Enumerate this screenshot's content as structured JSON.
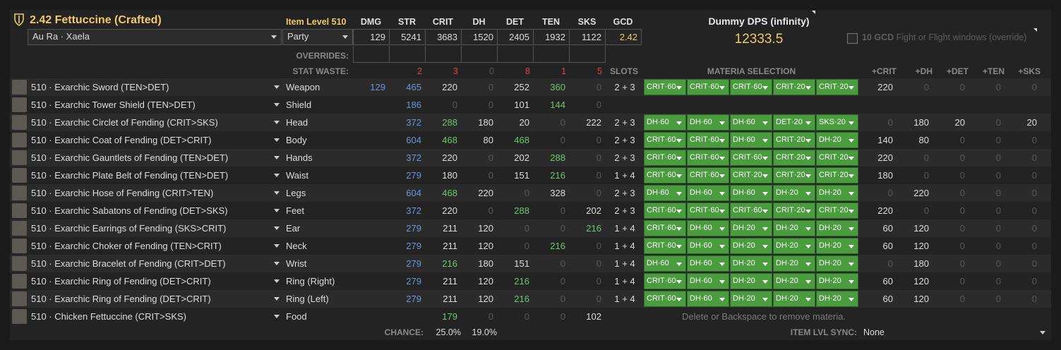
{
  "header": {
    "title": "2.42 Fettuccine (Crafted)",
    "item_level": "Item Level 510",
    "race": "Au Ra · Xaela",
    "party": "Party",
    "overrides_label": "OVERRIDES:",
    "stat_waste_label": "STAT WASTE:",
    "slots_label": "SLOTS",
    "materia_label": "MATERIA SELECTION",
    "dps_title": "Dummy DPS (infinity)",
    "dps_value": "12333.5",
    "gcd_option_bold": "10 GCD",
    "gcd_option_text": "Fight or Flight windows (override)"
  },
  "stat_headers": [
    "DMG",
    "STR",
    "CRIT",
    "DH",
    "DET",
    "TEN",
    "SKS",
    "GCD"
  ],
  "stat_values": [
    "129",
    "5241",
    "3683",
    "1520",
    "2405",
    "1932",
    "1122",
    "2.42"
  ],
  "stat_waste": [
    "2",
    "3",
    "0",
    "8",
    "1",
    "5"
  ],
  "bonus_headers": [
    "+CRIT",
    "+DH",
    "+DET",
    "+TEN",
    "+SKS"
  ],
  "items": [
    {
      "name": "510 · Exarchic Sword (TEN>DET)",
      "slot": "Weapon",
      "dmg": "129",
      "str": "465",
      "crit": "220",
      "dh": "0",
      "det": "252",
      "ten": "360",
      "sks": "0",
      "slots": "2 + 3",
      "materia": [
        "CRIT·60",
        "CRIT·60",
        "CRIT·60",
        "CRIT·20",
        "CRIT·20"
      ],
      "bonus": [
        "220",
        "0",
        "0",
        "0",
        "0"
      ]
    },
    {
      "name": "510 · Exarchic Tower Shield (TEN>DET)",
      "slot": "Shield",
      "dmg": "",
      "str": "186",
      "crit": "0",
      "dh": "0",
      "det": "101",
      "ten": "144",
      "sks": "0",
      "slots": "",
      "materia": [],
      "bonus": []
    },
    {
      "name": "510 · Exarchic Circlet of Fending (CRIT>SKS)",
      "slot": "Head",
      "dmg": "",
      "str": "372",
      "crit": "288",
      "dh": "180",
      "det": "20",
      "ten": "0",
      "sks": "222",
      "slots": "2 + 3",
      "materia": [
        "DH·60",
        "DH·60",
        "DH·60",
        "DET·20",
        "SKS·20"
      ],
      "bonus": [
        "0",
        "180",
        "20",
        "0",
        "20"
      ]
    },
    {
      "name": "510 · Exarchic Coat of Fending (DET>CRIT)",
      "slot": "Body",
      "dmg": "",
      "str": "604",
      "crit": "468",
      "dh": "80",
      "det": "468",
      "ten": "0",
      "sks": "0",
      "slots": "2 + 3",
      "materia": [
        "CRIT·60",
        "CRIT·60",
        "DH·60",
        "CRIT·20",
        "DH·20"
      ],
      "bonus": [
        "140",
        "80",
        "0",
        "0",
        "0"
      ]
    },
    {
      "name": "510 · Exarchic Gauntlets of Fending (TEN>DET)",
      "slot": "Hands",
      "dmg": "",
      "str": "372",
      "crit": "220",
      "dh": "0",
      "det": "202",
      "ten": "288",
      "sks": "0",
      "slots": "2 + 3",
      "materia": [
        "CRIT·60",
        "CRIT·60",
        "CRIT·60",
        "CRIT·20",
        "CRIT·20"
      ],
      "bonus": [
        "220",
        "0",
        "0",
        "0",
        "0"
      ]
    },
    {
      "name": "510 · Exarchic Plate Belt of Fending (TEN>DET)",
      "slot": "Waist",
      "dmg": "",
      "str": "279",
      "crit": "180",
      "dh": "0",
      "det": "151",
      "ten": "216",
      "sks": "0",
      "slots": "1 + 4",
      "materia": [
        "CRIT·60",
        "CRIT·60",
        "CRIT·20",
        "CRIT·20",
        "CRIT·20"
      ],
      "bonus": [
        "180",
        "0",
        "0",
        "0",
        "0"
      ]
    },
    {
      "name": "510 · Exarchic Hose of Fending (CRIT>TEN)",
      "slot": "Legs",
      "dmg": "",
      "str": "604",
      "crit": "468",
      "dh": "220",
      "det": "0",
      "ten": "328",
      "sks": "0",
      "slots": "2 + 3",
      "materia": [
        "DH·60",
        "DH·60",
        "DH·60",
        "DH·20",
        "DH·20"
      ],
      "bonus": [
        "0",
        "220",
        "0",
        "0",
        "0"
      ]
    },
    {
      "name": "510 · Exarchic Sabatons of Fending (DET>SKS)",
      "slot": "Feet",
      "dmg": "",
      "str": "372",
      "crit": "220",
      "dh": "0",
      "det": "288",
      "ten": "0",
      "sks": "202",
      "slots": "2 + 3",
      "materia": [
        "CRIT·60",
        "CRIT·60",
        "CRIT·60",
        "CRIT·20",
        "CRIT·20"
      ],
      "bonus": [
        "220",
        "0",
        "0",
        "0",
        "0"
      ]
    },
    {
      "name": "510 · Exarchic Earrings of Fending (SKS>CRIT)",
      "slot": "Ear",
      "dmg": "",
      "str": "279",
      "crit": "211",
      "dh": "120",
      "det": "0",
      "ten": "0",
      "sks": "216",
      "slots": "1 + 4",
      "materia": [
        "CRIT·60",
        "DH·60",
        "DH·20",
        "DH·20",
        "DH·20"
      ],
      "bonus": [
        "60",
        "120",
        "0",
        "0",
        "0"
      ]
    },
    {
      "name": "510 · Exarchic Choker of Fending (TEN>CRIT)",
      "slot": "Neck",
      "dmg": "",
      "str": "279",
      "crit": "211",
      "dh": "120",
      "det": "0",
      "ten": "216",
      "sks": "0",
      "slots": "1 + 4",
      "materia": [
        "CRIT·60",
        "DH·60",
        "DH·20",
        "DH·20",
        "DH·20"
      ],
      "bonus": [
        "60",
        "120",
        "0",
        "0",
        "0"
      ]
    },
    {
      "name": "510 · Exarchic Bracelet of Fending (CRIT>DET)",
      "slot": "Wrist",
      "dmg": "",
      "str": "279",
      "crit": "216",
      "dh": "180",
      "det": "151",
      "ten": "0",
      "sks": "0",
      "slots": "1 + 4",
      "materia": [
        "DH·60",
        "DH·60",
        "DH·20",
        "DH·20",
        "DH·20"
      ],
      "bonus": [
        "0",
        "180",
        "0",
        "0",
        "0"
      ]
    },
    {
      "name": "510 · Exarchic Ring of Fending (DET>CRIT)",
      "slot": "Ring (Right)",
      "dmg": "",
      "str": "279",
      "crit": "211",
      "dh": "120",
      "det": "216",
      "ten": "0",
      "sks": "0",
      "slots": "1 + 4",
      "materia": [
        "CRIT·60",
        "DH·60",
        "DH·20",
        "DH·20",
        "DH·20"
      ],
      "bonus": [
        "60",
        "120",
        "0",
        "0",
        "0"
      ]
    },
    {
      "name": "510 · Exarchic Ring of Fending (DET>CRIT)",
      "slot": "Ring (Left)",
      "dmg": "",
      "str": "279",
      "crit": "211",
      "dh": "120",
      "det": "216",
      "ten": "0",
      "sks": "0",
      "slots": "1 + 4",
      "materia": [
        "CRIT·60",
        "DH·60",
        "DH·20",
        "DH·20",
        "DH·20"
      ],
      "bonus": [
        "60",
        "120",
        "0",
        "0",
        "0"
      ]
    },
    {
      "name": "510 · Chicken Fettuccine (CRIT>SKS)",
      "slot": "Food",
      "dmg": "",
      "str": "",
      "crit": "179",
      "dh": "0",
      "det": "0",
      "ten": "0",
      "sks": "102",
      "slots": "",
      "materia": [],
      "bonus": []
    }
  ],
  "materia_hint": "Delete or Backspace to remove materia.",
  "footer": {
    "chance_label": "CHANCE:",
    "crit_chance": "25.0%",
    "dh_chance": "19.0%",
    "sync_label": "ITEM LVL SYNC:",
    "sync_value": "None"
  }
}
